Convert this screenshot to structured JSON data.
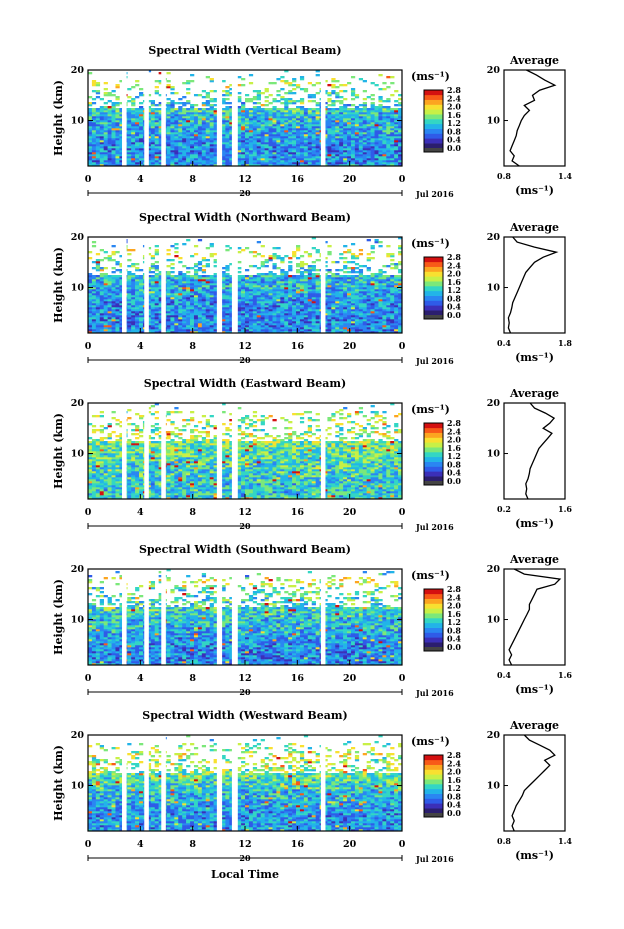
{
  "chart_data": [
    {
      "type": "heatmap",
      "title": "Spectral Width (Vertical Beam)",
      "ylabel": "Height (km)",
      "xlim": [
        0,
        24
      ],
      "ylim": [
        1,
        20
      ],
      "x_ticks": [
        "0",
        "4",
        "8",
        "12",
        "16",
        "20",
        "0"
      ],
      "y_ticks": [
        "10",
        "20"
      ],
      "date_label": "20",
      "month_label": "Jul 2016",
      "gaps_hours": [
        [
          2.6,
          2.95
        ],
        [
          4.3,
          4.65
        ],
        [
          5.6,
          5.95
        ],
        [
          9.85,
          10.25
        ],
        [
          11,
          11.45
        ],
        [
          17.8,
          18.15
        ]
      ],
      "colorbar": {
        "unit": "(ms⁻¹)",
        "ticks": [
          "2.8",
          "2.4",
          "2.0",
          "1.6",
          "1.2",
          "0.8",
          "0.4",
          "0.0"
        ],
        "range": [
          0,
          2.8
        ]
      },
      "profile": {
        "title": "Average",
        "xlabel": "(ms⁻¹)",
        "x_ticks": [
          "0.8",
          "1.4"
        ],
        "xlim": [
          0.8,
          1.4
        ],
        "y_ticks": [
          "10",
          "20"
        ],
        "ylim": [
          1,
          20
        ],
        "heights_km": [
          1,
          2,
          3,
          4,
          5,
          6,
          7,
          8,
          9,
          10,
          11,
          12,
          13,
          14,
          15,
          16,
          17,
          18,
          19,
          20
        ],
        "values": [
          0.95,
          0.88,
          0.9,
          0.86,
          0.88,
          0.9,
          0.92,
          0.93,
          0.95,
          0.97,
          1.0,
          1.05,
          1.0,
          1.1,
          1.08,
          1.15,
          1.3,
          1.2,
          1.12,
          1.02
        ]
      }
    },
    {
      "type": "heatmap",
      "title": "Spectral Width (Northward Beam)",
      "ylabel": "Height (km)",
      "xlim": [
        0,
        24
      ],
      "ylim": [
        1,
        20
      ],
      "x_ticks": [
        "0",
        "4",
        "8",
        "12",
        "16",
        "20",
        "0"
      ],
      "y_ticks": [
        "10",
        "20"
      ],
      "date_label": "20",
      "month_label": "Jul 2016",
      "gaps_hours": [
        [
          2.6,
          2.95
        ],
        [
          4.3,
          4.65
        ],
        [
          5.6,
          5.95
        ],
        [
          9.85,
          10.25
        ],
        [
          11,
          11.45
        ],
        [
          17.8,
          18.15
        ]
      ],
      "colorbar": {
        "unit": "(ms⁻¹)",
        "ticks": [
          "2.8",
          "2.4",
          "2.0",
          "1.6",
          "1.2",
          "0.8",
          "0.4",
          "0.0"
        ],
        "range": [
          0,
          2.8
        ]
      },
      "profile": {
        "title": "Average",
        "xlabel": "(ms⁻¹)",
        "x_ticks": [
          "0.4",
          "1.8"
        ],
        "xlim": [
          0.4,
          1.8
        ],
        "y_ticks": [
          "10",
          "20"
        ],
        "ylim": [
          1,
          20
        ],
        "heights_km": [
          1,
          2,
          3,
          4,
          5,
          6,
          7,
          8,
          9,
          10,
          11,
          12,
          13,
          14,
          15,
          16,
          17,
          18,
          19,
          20
        ],
        "values": [
          0.55,
          0.5,
          0.52,
          0.5,
          0.55,
          0.58,
          0.6,
          0.65,
          0.7,
          0.75,
          0.8,
          0.85,
          0.9,
          1.0,
          1.1,
          1.3,
          1.6,
          1.1,
          0.7,
          0.6
        ]
      }
    },
    {
      "type": "heatmap",
      "title": "Spectral Width (Eastward Beam)",
      "ylabel": "Height (km)",
      "xlim": [
        0,
        24
      ],
      "ylim": [
        1,
        20
      ],
      "x_ticks": [
        "0",
        "4",
        "8",
        "12",
        "16",
        "20",
        "0"
      ],
      "y_ticks": [
        "10",
        "20"
      ],
      "date_label": "20",
      "month_label": "Jul 2016",
      "gaps_hours": [
        [
          2.6,
          2.95
        ],
        [
          4.3,
          4.65
        ],
        [
          5.6,
          5.95
        ],
        [
          9.85,
          10.25
        ],
        [
          11,
          11.45
        ],
        [
          17.8,
          18.15
        ]
      ],
      "colorbar": {
        "unit": "(ms⁻¹)",
        "ticks": [
          "2.8",
          "2.4",
          "2.0",
          "1.6",
          "1.2",
          "0.8",
          "0.4",
          "0.0"
        ],
        "range": [
          0,
          2.8
        ]
      },
      "profile": {
        "title": "Average",
        "xlabel": "(ms⁻¹)",
        "x_ticks": [
          "0.2",
          "1.6"
        ],
        "xlim": [
          0.2,
          1.6
        ],
        "y_ticks": [
          "10",
          "20"
        ],
        "ylim": [
          1,
          20
        ],
        "heights_km": [
          1,
          2,
          3,
          4,
          5,
          6,
          7,
          8,
          9,
          10,
          11,
          12,
          13,
          14,
          15,
          16,
          17,
          18,
          19,
          20
        ],
        "values": [
          0.75,
          0.7,
          0.72,
          0.7,
          0.75,
          0.78,
          0.8,
          0.85,
          0.9,
          0.95,
          1.0,
          1.1,
          1.2,
          1.3,
          1.1,
          1.25,
          1.35,
          1.15,
          0.9,
          0.8
        ]
      }
    },
    {
      "type": "heatmap",
      "title": "Spectral Width (Southward Beam)",
      "ylabel": "Height (km)",
      "xlim": [
        0,
        24
      ],
      "ylim": [
        1,
        20
      ],
      "x_ticks": [
        "0",
        "4",
        "8",
        "12",
        "16",
        "20",
        "0"
      ],
      "y_ticks": [
        "10",
        "20"
      ],
      "date_label": "20",
      "month_label": "Jul 2016",
      "gaps_hours": [
        [
          2.6,
          2.95
        ],
        [
          4.3,
          4.65
        ],
        [
          5.6,
          5.95
        ],
        [
          9.85,
          10.25
        ],
        [
          11,
          11.45
        ],
        [
          17.8,
          18.15
        ]
      ],
      "colorbar": {
        "unit": "(ms⁻¹)",
        "ticks": [
          "2.8",
          "2.4",
          "2.0",
          "1.6",
          "1.2",
          "0.8",
          "0.4",
          "0.0"
        ],
        "range": [
          0,
          2.8
        ]
      },
      "profile": {
        "title": "Average",
        "xlabel": "(ms⁻¹)",
        "x_ticks": [
          "0.4",
          "1.6"
        ],
        "xlim": [
          0.4,
          1.6
        ],
        "y_ticks": [
          "10",
          "20"
        ],
        "ylim": [
          1,
          20
        ],
        "heights_km": [
          1,
          2,
          3,
          4,
          5,
          6,
          7,
          8,
          9,
          10,
          11,
          12,
          13,
          14,
          15,
          16,
          17,
          18,
          19,
          20
        ],
        "values": [
          0.55,
          0.5,
          0.55,
          0.5,
          0.55,
          0.6,
          0.65,
          0.7,
          0.75,
          0.8,
          0.85,
          0.9,
          0.9,
          0.95,
          1.0,
          1.05,
          1.4,
          1.5,
          0.8,
          0.6
        ]
      }
    },
    {
      "type": "heatmap",
      "title": "Spectral Width (Westward Beam)",
      "ylabel": "Height (km)",
      "xlim": [
        0,
        24
      ],
      "ylim": [
        1,
        20
      ],
      "x_ticks": [
        "0",
        "4",
        "8",
        "12",
        "16",
        "20",
        "0"
      ],
      "y_ticks": [
        "10",
        "20"
      ],
      "date_label": "20",
      "month_label": "Jul 2016",
      "gaps_hours": [
        [
          2.6,
          2.95
        ],
        [
          4.3,
          4.65
        ],
        [
          5.6,
          5.95
        ],
        [
          9.85,
          10.25
        ],
        [
          11,
          11.45
        ],
        [
          17.8,
          18.15
        ]
      ],
      "colorbar": {
        "unit": "(ms⁻¹)",
        "ticks": [
          "2.8",
          "2.4",
          "2.0",
          "1.6",
          "1.2",
          "0.8",
          "0.4",
          "0.0"
        ],
        "range": [
          0,
          2.8
        ]
      },
      "profile": {
        "title": "Average",
        "xlabel": "(ms⁻¹)",
        "x_ticks": [
          "0.8",
          "1.4"
        ],
        "xlim": [
          0.8,
          1.4
        ],
        "y_ticks": [
          "10",
          "20"
        ],
        "ylim": [
          1,
          20
        ],
        "heights_km": [
          1,
          2,
          3,
          4,
          5,
          6,
          7,
          8,
          9,
          10,
          11,
          12,
          13,
          14,
          15,
          16,
          17,
          18,
          19,
          20
        ],
        "values": [
          0.9,
          0.88,
          0.9,
          0.88,
          0.9,
          0.92,
          0.95,
          0.98,
          1.0,
          1.05,
          1.1,
          1.15,
          1.2,
          1.25,
          1.2,
          1.3,
          1.25,
          1.15,
          1.05,
          1.0
        ]
      }
    }
  ],
  "shared": {
    "xlabel": "Local Time"
  },
  "colors": {
    "colormap": [
      "#2b1e6e",
      "#3b2fb8",
      "#2f5be8",
      "#2a86f2",
      "#22b4e8",
      "#33d6c4",
      "#7be87a",
      "#c8f046",
      "#f8e030",
      "#fca520",
      "#f85a18",
      "#d41010"
    ],
    "missing": "#ffffff",
    "colorbar_bottom": "#444444"
  }
}
